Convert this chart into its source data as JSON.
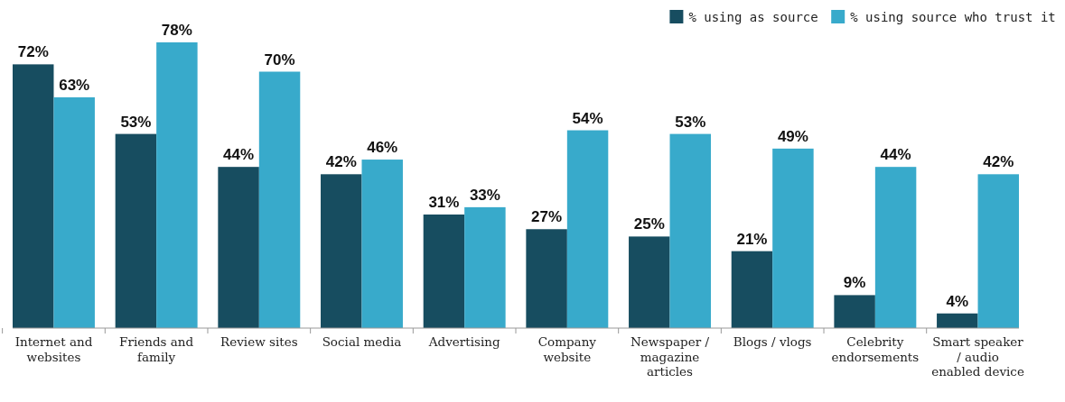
{
  "chart_data": {
    "type": "bar",
    "categories": [
      "Internet and websites",
      "Friends and family",
      "Review sites",
      "Social media",
      "Advertising",
      "Company website",
      "Newspaper / magazine articles",
      "Blogs / vlogs",
      "Celebrity endorsements",
      "Smart speaker / audio enabled device"
    ],
    "series": [
      {
        "name": "% using as source",
        "color": "#174d60",
        "values": [
          72,
          53,
          44,
          42,
          31,
          27,
          25,
          21,
          9,
          4
        ],
        "value_labels": [
          "72%",
          "53%",
          "44%",
          "42%",
          "31%",
          "27%",
          "25%",
          "21%",
          "9%",
          "4%"
        ]
      },
      {
        "name": "% using source who trust it",
        "color": "#38aacb",
        "values": [
          63,
          78,
          70,
          46,
          33,
          54,
          53,
          49,
          44,
          42
        ],
        "value_labels": [
          "63%",
          "78%",
          "70%",
          "46%",
          "33%",
          "54%",
          "53%",
          "49%",
          "44%",
          "42%"
        ]
      }
    ],
    "legend": "top right"
  }
}
